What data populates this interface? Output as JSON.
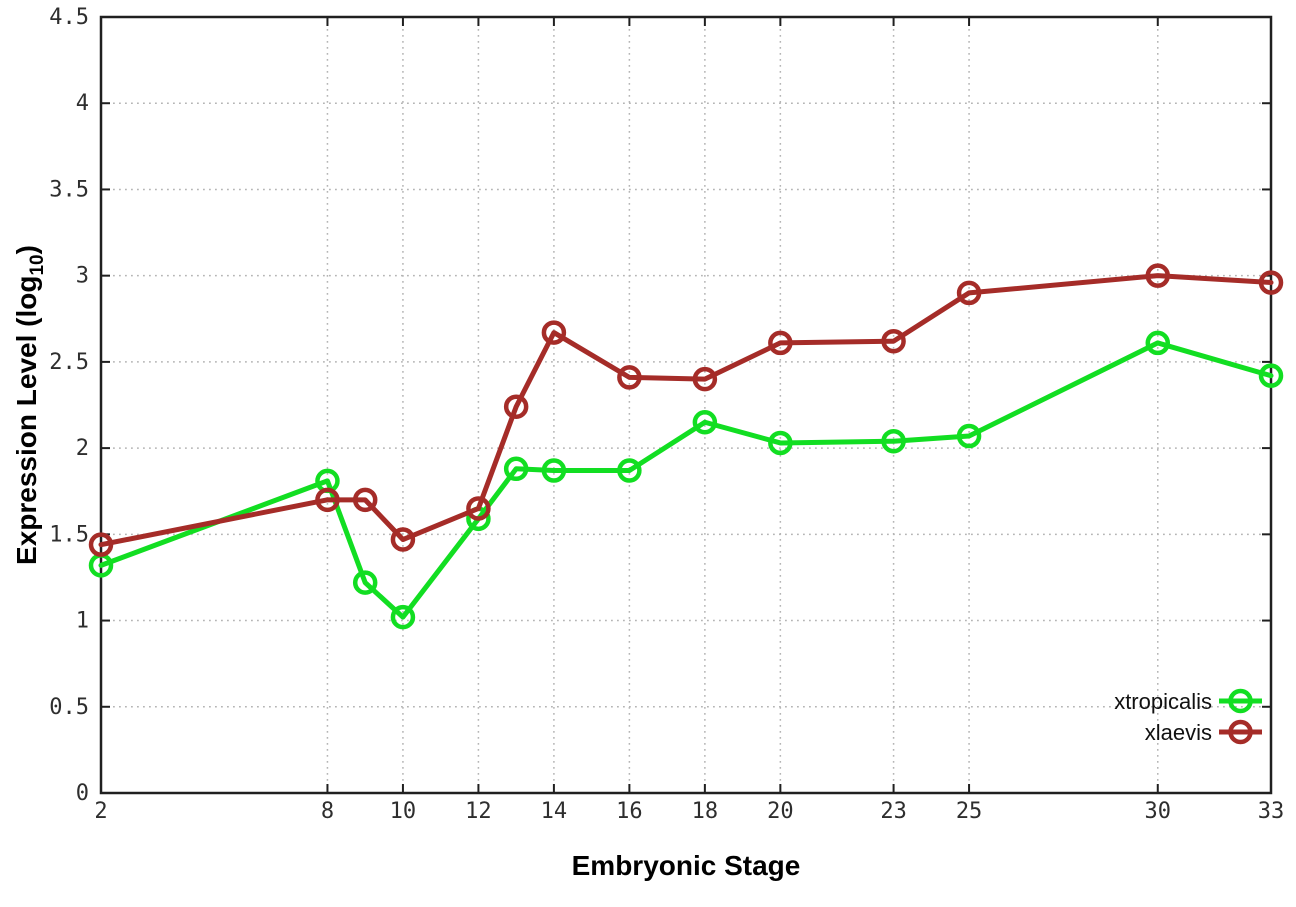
{
  "figure": {
    "background": "#ffffff",
    "xlabel": "Embryonic Stage",
    "ylabel_parts": {
      "pre": "Expression Level (log",
      "sub": "10",
      "post": ")"
    }
  },
  "chart_data": {
    "type": "line",
    "title": "",
    "xlabel": "Embryonic Stage",
    "ylabel": "Expression Level (log10)",
    "xlim": [
      2,
      33
    ],
    "ylim": [
      0,
      4.5
    ],
    "grid": true,
    "grid_style": "dotted",
    "legend_position": "inside-bottom-right",
    "x": [
      2,
      8,
      9,
      10,
      12,
      13,
      14,
      16,
      18,
      20,
      23,
      25,
      30,
      33
    ],
    "series": [
      {
        "name": "xtropicalis",
        "color": "#12de22",
        "marker": "open-circle",
        "values": [
          1.32,
          1.81,
          1.22,
          1.02,
          1.59,
          1.88,
          1.87,
          1.87,
          2.15,
          2.03,
          2.04,
          2.07,
          2.61,
          2.42
        ]
      },
      {
        "name": "xlaevis",
        "color": "#a52c28",
        "marker": "open-circle",
        "values": [
          1.44,
          1.7,
          1.7,
          1.47,
          1.65,
          2.24,
          2.67,
          2.41,
          2.4,
          2.61,
          2.62,
          2.9,
          3.0,
          2.96
        ]
      }
    ],
    "xticks": {
      "values": [
        2,
        8,
        10,
        12,
        14,
        16,
        18,
        20,
        23,
        25,
        30,
        33
      ],
      "labels": [
        "2",
        "8",
        "10",
        "12",
        "14",
        "16",
        "18",
        "20",
        "23",
        "25",
        "30",
        "33"
      ]
    },
    "yticks": {
      "values": [
        0,
        0.5,
        1,
        1.5,
        2,
        2.5,
        3,
        3.5,
        4,
        4.5
      ],
      "labels": [
        "0",
        "0.5",
        "1",
        "1.5",
        "2",
        "2.5",
        "3",
        "3.5",
        "4",
        "4.5"
      ]
    }
  },
  "style": {
    "grid_color": "#b5b5b5",
    "border_color": "#202020",
    "tick_label_color": "#2e2e2e",
    "legend_text_color": "#111111",
    "line_width": 5,
    "marker_radius": 10,
    "marker_stroke": 4.5
  }
}
